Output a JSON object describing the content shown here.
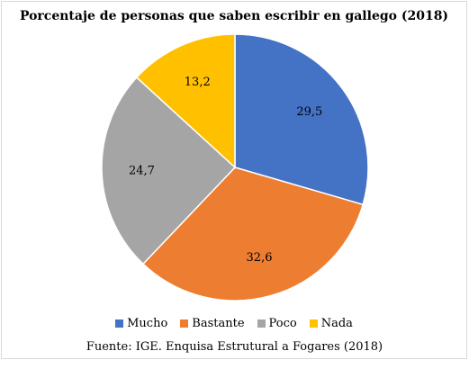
{
  "chart_data": {
    "type": "pie",
    "title": "Porcentaje de personas que saben escribir en gallego (2018)",
    "categories": [
      "Mucho",
      "Bastante",
      "Poco",
      "Nada"
    ],
    "values": [
      29.5,
      32.6,
      24.7,
      13.2
    ],
    "value_labels": [
      "29,5",
      "32,6",
      "24,7",
      "13,2"
    ],
    "colors": [
      "#4472C4",
      "#ED7D31",
      "#A5A5A5",
      "#FFC000"
    ],
    "legend_position": "bottom"
  },
  "source": "Fuente: IGE. Enquisa Estrutural a Fogares (2018)"
}
